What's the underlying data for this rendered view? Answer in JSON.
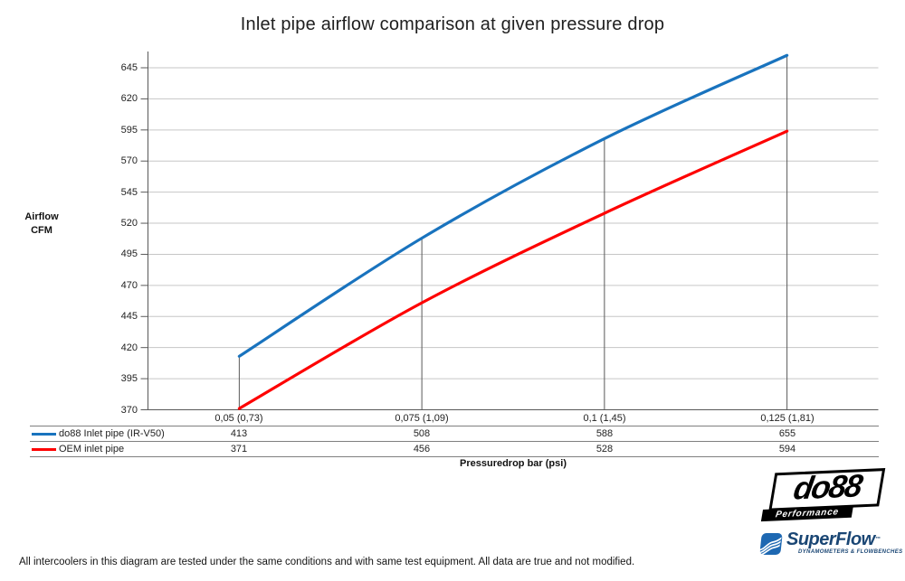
{
  "title": "Inlet pipe airflow comparison at given pressure drop",
  "chart_data": {
    "type": "line",
    "title": "Inlet pipe airflow comparison at given pressure drop",
    "categories": [
      "0,05 (0,73)",
      "0,075 (1,09)",
      "0,1 (1,45)",
      "0,125 (1,81)"
    ],
    "series": [
      {
        "name": "do88 Inlet pipe (IR-V50)",
        "color": "#1973BE",
        "values": [
          413,
          508,
          588,
          655
        ]
      },
      {
        "name": "OEM inlet pipe",
        "color": "#FE0000",
        "values": [
          371,
          456,
          528,
          594
        ]
      }
    ],
    "xlabel": "Pressuredrop bar (psi)",
    "ylabel_line1": "Airflow",
    "ylabel_line2": "CFM",
    "yticks": [
      370,
      395,
      420,
      445,
      470,
      495,
      520,
      545,
      570,
      595,
      620,
      645
    ],
    "ylim": [
      370,
      658
    ],
    "grid": "horizontal-only",
    "smooth": true,
    "drop_lines_at_categories": true,
    "legend_position": "bottom-table",
    "colors": {
      "gridline": "#c6c6c6",
      "axis": "#595959",
      "drop_line": "#595959",
      "table_border": "#7f7f7f"
    }
  },
  "footer": {
    "note": "All intercoolers in this diagram are tested under the same conditions and with same test equipment. All data are true and not modified."
  },
  "logos": {
    "do88": {
      "name": "do88",
      "sub": "Performance"
    },
    "superflow": {
      "name": "SuperFlow",
      "tm": "™",
      "tagline": "DYNAMOMETERS & FLOWBENCHES"
    }
  }
}
